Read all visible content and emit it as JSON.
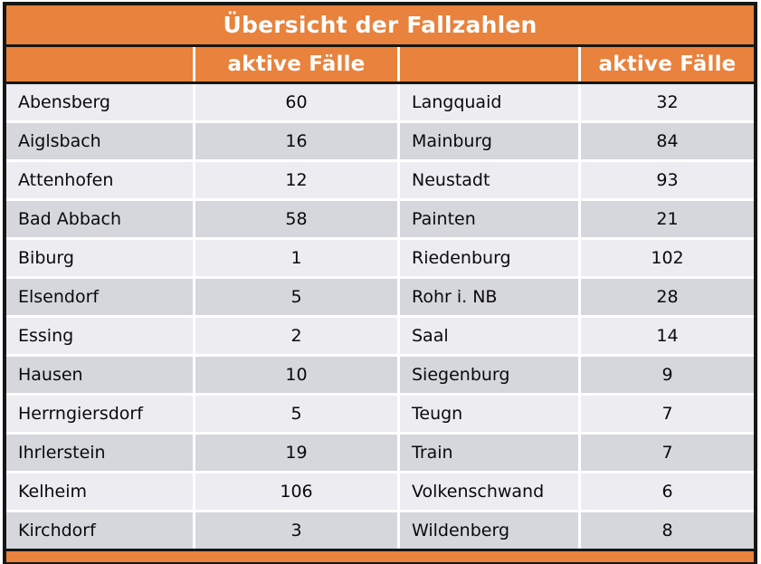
{
  "title": "Übersicht der Fallzahlen",
  "header": {
    "col_0": "",
    "col_1": "aktive Fälle",
    "col_2": "",
    "col_3": "aktive Fälle"
  },
  "rows": [
    {
      "left_name": "Abensberg",
      "left_cases": "60",
      "right_name": "Langquaid",
      "right_cases": "32"
    },
    {
      "left_name": "Aiglsbach",
      "left_cases": "16",
      "right_name": "Mainburg",
      "right_cases": "84"
    },
    {
      "left_name": "Attenhofen",
      "left_cases": "12",
      "right_name": "Neustadt",
      "right_cases": "93"
    },
    {
      "left_name": "Bad Abbach",
      "left_cases": "58",
      "right_name": "Painten",
      "right_cases": "21"
    },
    {
      "left_name": "Biburg",
      "left_cases": "1",
      "right_name": "Riedenburg",
      "right_cases": "102"
    },
    {
      "left_name": "Elsendorf",
      "left_cases": "5",
      "right_name": "Rohr i. NB",
      "right_cases": "28"
    },
    {
      "left_name": "Essing",
      "left_cases": "2",
      "right_name": "Saal",
      "right_cases": "14"
    },
    {
      "left_name": "Hausen",
      "left_cases": "10",
      "right_name": "Siegenburg",
      "right_cases": "9"
    },
    {
      "left_name": "Herrngiersdorf",
      "left_cases": "5",
      "right_name": "Teugn",
      "right_cases": "7"
    },
    {
      "left_name": "Ihrlerstein",
      "left_cases": "19",
      "right_name": "Train",
      "right_cases": "7"
    },
    {
      "left_name": "Kelheim",
      "left_cases": "106",
      "right_name": "Volkenschwand",
      "right_cases": "6"
    },
    {
      "left_name": "Kirchdorf",
      "left_cases": "3",
      "right_name": "Wildenberg",
      "right_cases": "8"
    }
  ],
  "colors": {
    "orange": "#E8823C",
    "row_light": "#ECECF1",
    "row_dark": "#D5D7DD",
    "border_black": "#161616",
    "header_text": "#FFFFFF",
    "cell_text": "#0A0A0A"
  }
}
